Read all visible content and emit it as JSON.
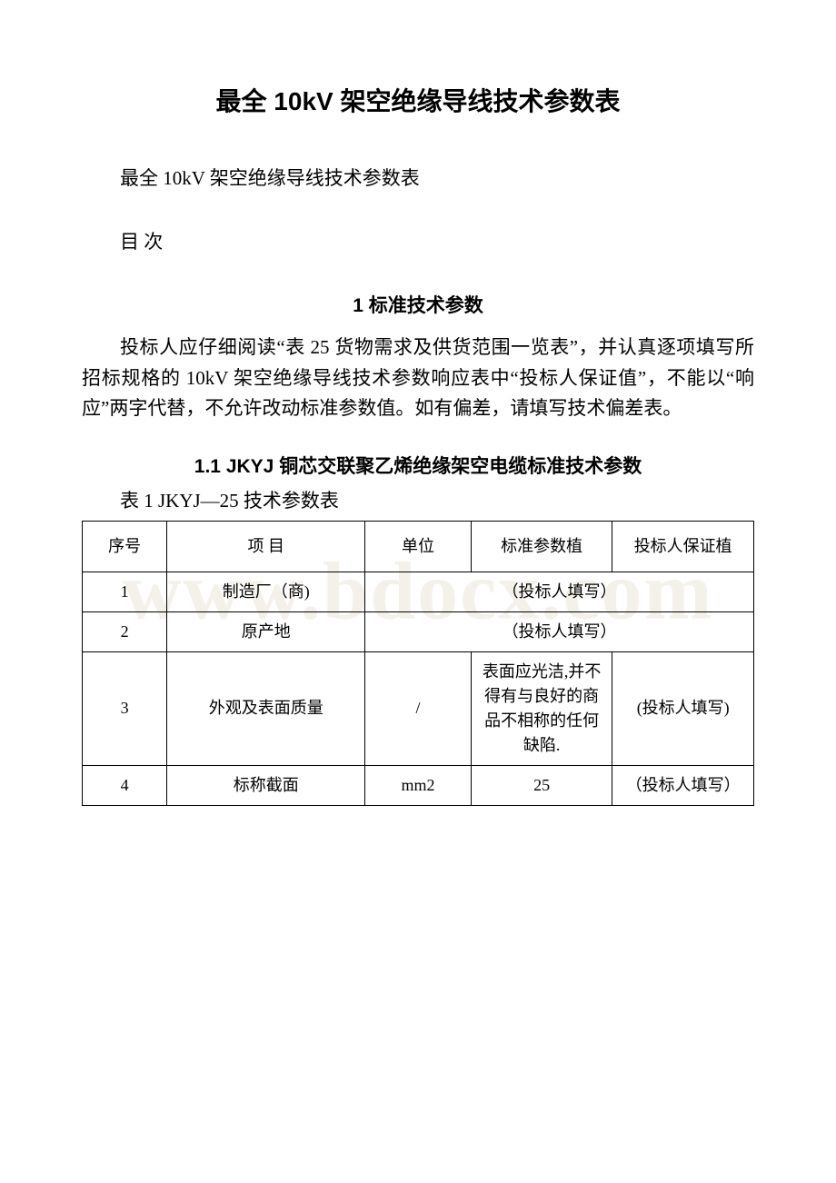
{
  "watermark": "www.bdocx.com",
  "title": "最全 10kV 架空绝缘导线技术参数表",
  "subtitle": "最全 10kV 架空绝缘导线技术参数表",
  "toc": "目 次",
  "section1": {
    "heading": "1 标准技术参数",
    "paragraph": "投标人应仔细阅读“表 25 货物需求及供货范围一览表”，并认真逐项填写所招标规格的 10kV 架空绝缘导线技术参数响应表中“投标人保证值”，不能以“响应”两字代替，不允许改动标准参数值。如有偏差，请填写技术偏差表。"
  },
  "section1_1": {
    "heading": "1.1 JKYJ 铜芯交联聚乙烯绝缘架空电缆标准技术参数",
    "tableCaption": "表 1 JKYJ—25 技术参数表"
  },
  "table": {
    "headers": {
      "seq": "序号",
      "item": "项 目",
      "unit": "单位",
      "std": "标准参数植",
      "bid": "投标人保证植"
    },
    "rows": [
      {
        "seq": "1",
        "item": "制造厂（商)",
        "merged": "（投标人填写）"
      },
      {
        "seq": "2",
        "item": "原产地",
        "merged": "（投标人填写）"
      },
      {
        "seq": "3",
        "item": "外观及表面质量",
        "unit": "/",
        "std": "表面应光洁,并不得有与良好的商品不相称的任何缺陷.",
        "bid": "(投标人填写)"
      },
      {
        "seq": "4",
        "item": "标称截面",
        "unit": "mm2",
        "std": "25",
        "bid": "（投标人填写）"
      }
    ]
  }
}
